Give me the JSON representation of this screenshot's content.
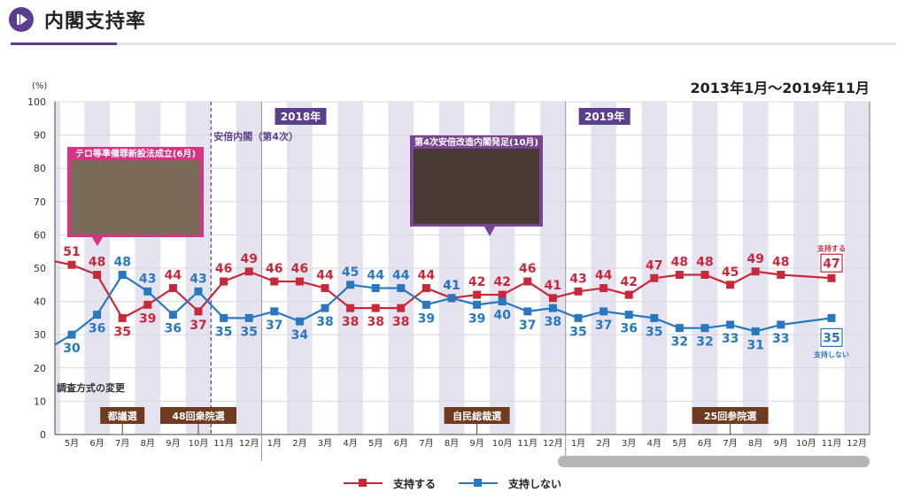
{
  "header": {
    "title": "内閣支持率"
  },
  "period": "2013年1月～2019年11月",
  "colors": {
    "support": "#c8283a",
    "nonsupport": "#2778c0",
    "accent": "#5b3f8e",
    "event_box": "#6e3a20",
    "callout_pink": "#d63382",
    "callout_purple": "#7b4394"
  },
  "legend": [
    {
      "label": "支持する",
      "color": "#c8283a"
    },
    {
      "label": "支持しない",
      "color": "#2778c0"
    }
  ],
  "chart_data": {
    "type": "line",
    "ylabel": "(%)",
    "ylim": [
      0,
      100
    ],
    "yticks": [
      0,
      10,
      20,
      30,
      40,
      50,
      60,
      70,
      80,
      90,
      100
    ],
    "categories": [
      "5月",
      "6月",
      "7月",
      "8月",
      "9月",
      "10月",
      "11月",
      "12月",
      "1月",
      "2月",
      "3月",
      "4月",
      "5月",
      "6月",
      "7月",
      "8月",
      "9月",
      "10月",
      "11月",
      "12月",
      "1月",
      "2月",
      "3月",
      "4月",
      "5月",
      "6月",
      "7月",
      "8月",
      "9月",
      "10月",
      "11月",
      "12月"
    ],
    "series": [
      {
        "name": "支持する",
        "color": "#c8283a",
        "values": [
          51,
          48,
          35,
          39,
          44,
          37,
          46,
          49,
          46,
          46,
          44,
          38,
          38,
          38,
          44,
          41,
          42,
          42,
          46,
          41,
          43,
          44,
          42,
          47,
          48,
          48,
          45,
          49,
          48,
          null,
          47,
          null
        ],
        "labels": [
          "51",
          "48",
          "35",
          "39",
          "44",
          "37",
          "46",
          "49",
          "46",
          "46",
          "44",
          "38",
          "38",
          "38",
          "44",
          "41",
          "42",
          "42",
          "46",
          "41",
          "43",
          "44",
          "42",
          "47",
          "48",
          "48",
          "45",
          "49",
          "48",
          "",
          "47",
          ""
        ]
      },
      {
        "name": "支持しない",
        "color": "#2778c0",
        "values": [
          30,
          36,
          48,
          43,
          36,
          43,
          35,
          35,
          37,
          34,
          38,
          45,
          44,
          44,
          39,
          41,
          39,
          40,
          37,
          38,
          35,
          37,
          36,
          35,
          32,
          32,
          33,
          31,
          33,
          null,
          35,
          null
        ],
        "labels": [
          "30",
          "36",
          "48",
          "43",
          "36",
          "43",
          "35",
          "35",
          "37",
          "34",
          "38",
          "45",
          "44",
          "44",
          "39",
          "41",
          "39",
          "40",
          "37",
          "38",
          "35",
          "37",
          "36",
          "35",
          "32",
          "32",
          "33",
          "31",
          "33",
          "",
          "35",
          ""
        ]
      }
    ],
    "end_labels": {
      "support": "支持する",
      "nonsupport": "支持しない"
    },
    "year_labels": [
      "2018年",
      "2019年"
    ],
    "annotations": [
      "安倍内閣（第4次）",
      "調査方式の変更",
      "テロ等準備罪新設法成立(6月)",
      "第4次安倍改造内閣発足(10月)"
    ],
    "events": [
      {
        "label": "都議選",
        "category": "7月"
      },
      {
        "label": "48回衆院選",
        "category": "10月"
      },
      {
        "label": "自民総裁選",
        "category": "9月"
      },
      {
        "label": "25回参院選",
        "category": "7月"
      }
    ]
  }
}
